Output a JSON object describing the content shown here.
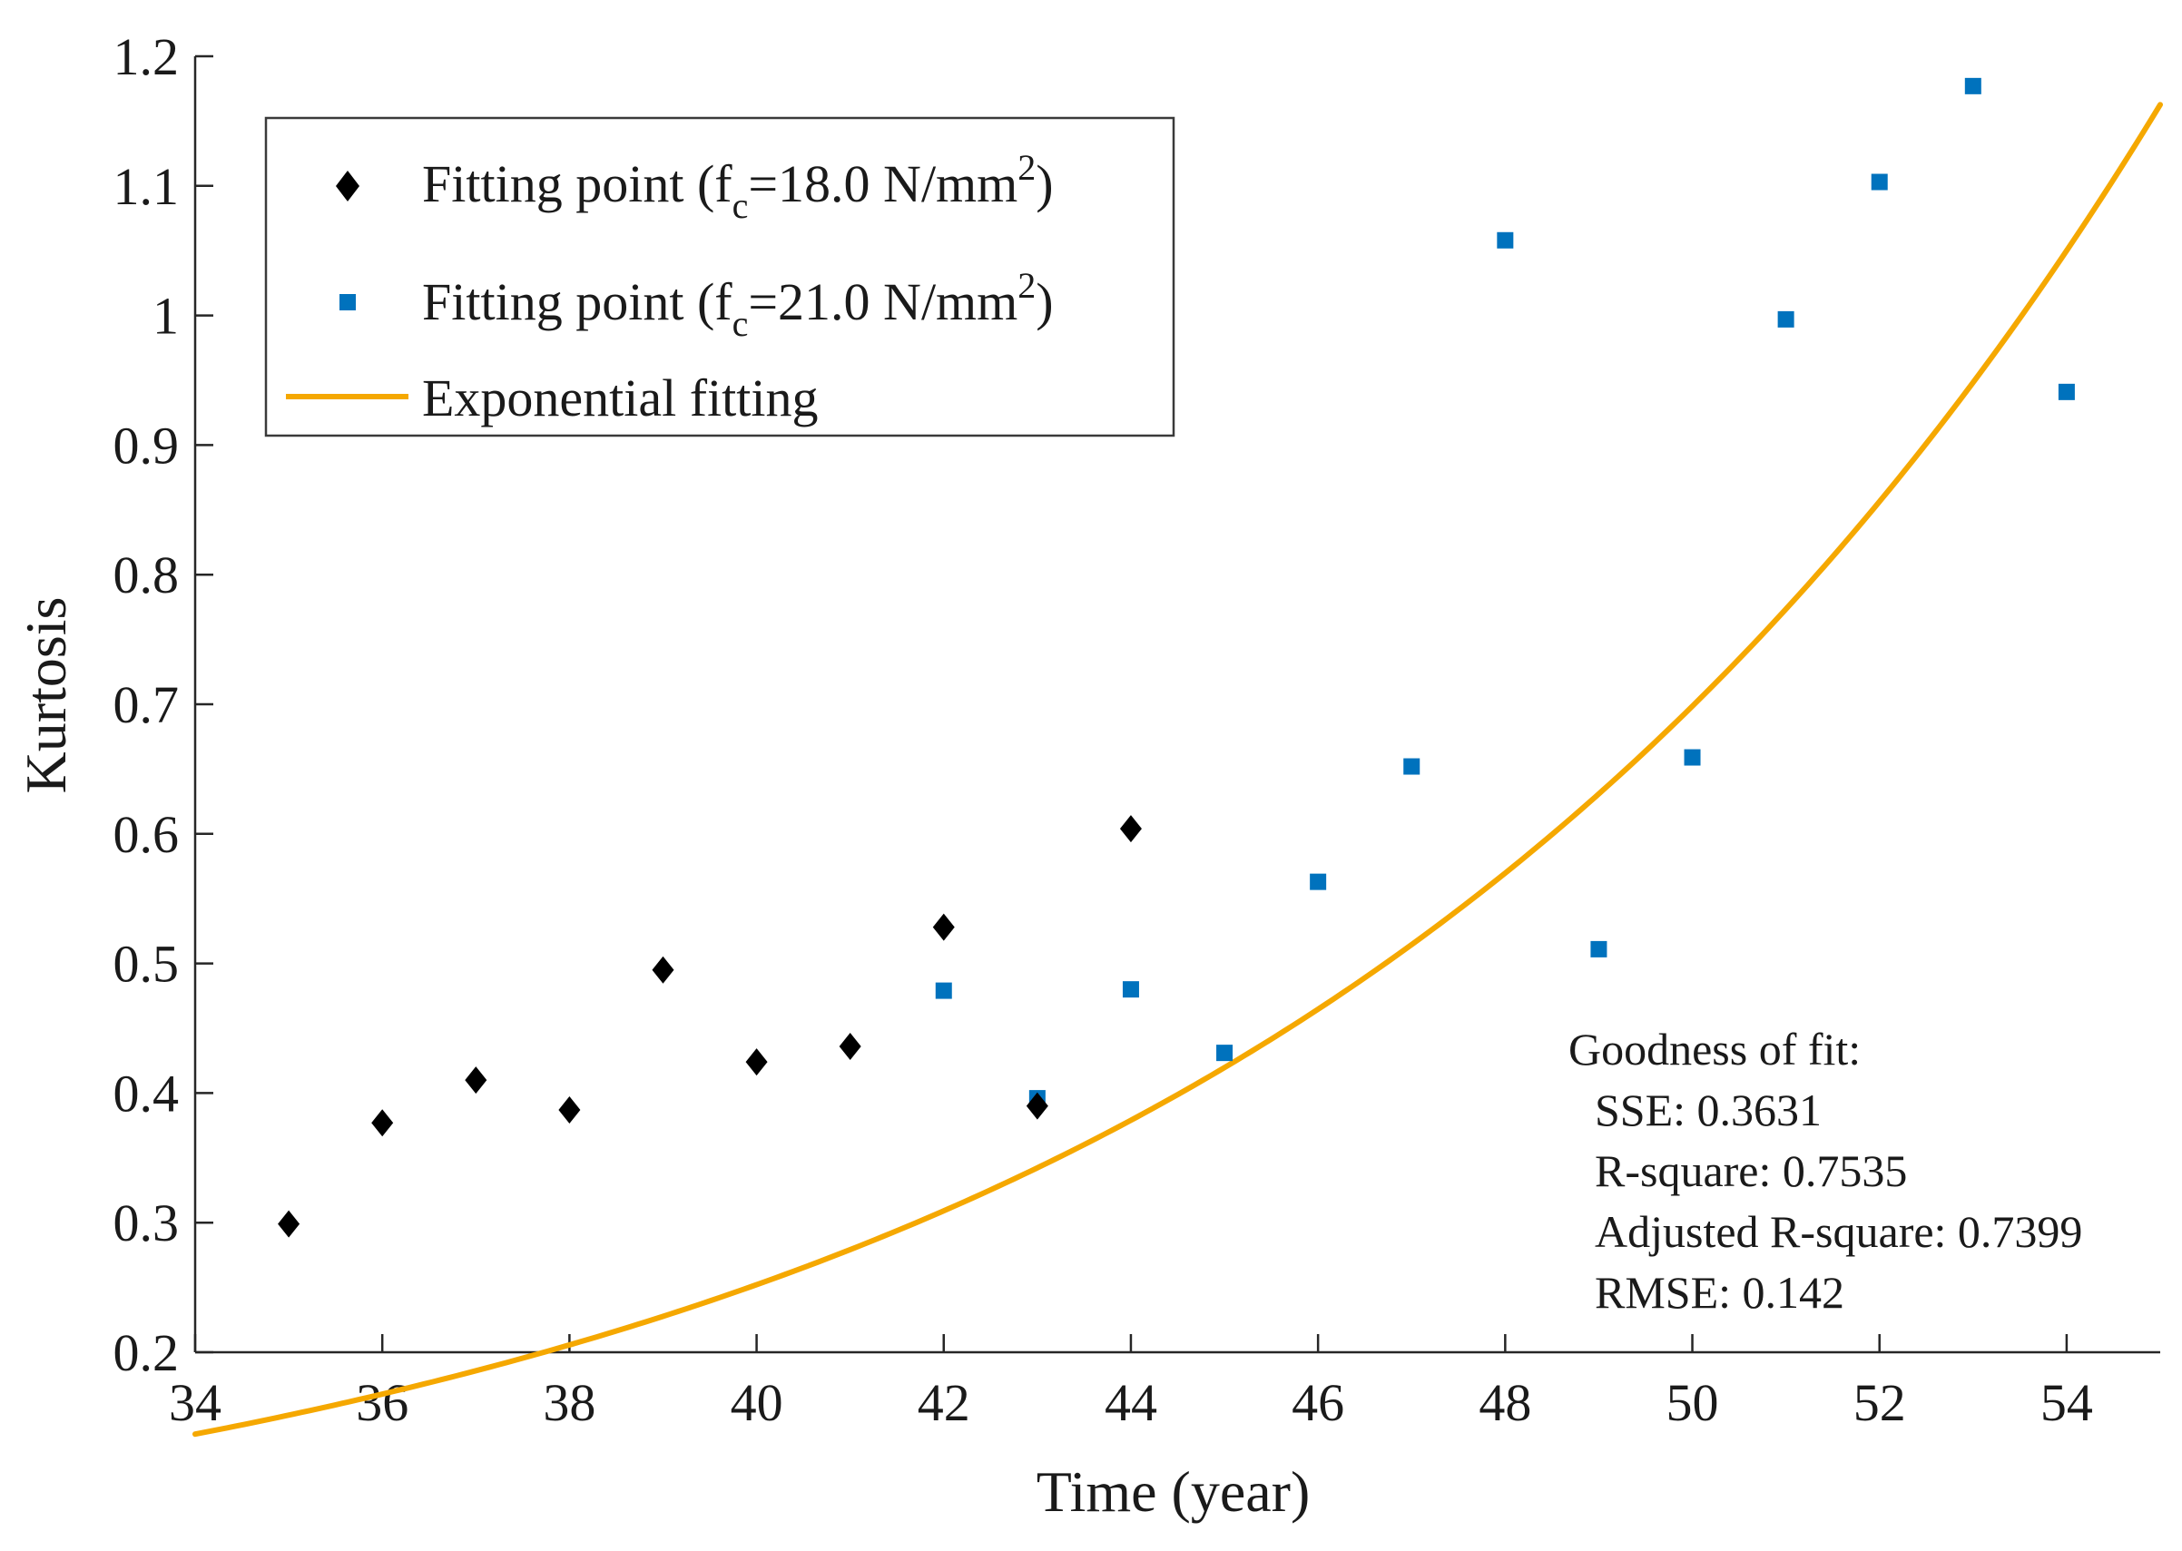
{
  "chart_data": {
    "type": "scatter",
    "title": "",
    "xlabel": "Time (year)",
    "ylabel": "Kurtosis",
    "xlim": [
      34,
      55
    ],
    "ylim": [
      0.2,
      1.2
    ],
    "x_ticks": [
      "34",
      "36",
      "38",
      "40",
      "42",
      "44",
      "46",
      "48",
      "50",
      "52",
      "54"
    ],
    "y_ticks": [
      "0.2",
      "0.3",
      "0.4",
      "0.5",
      "0.6",
      "0.7",
      "0.8",
      "0.9",
      "1",
      "1.1",
      "1.2"
    ],
    "series": [
      {
        "name": "Fitting point (fc=18.0 N/mm2)",
        "label_prefix": "Fitting point (f",
        "label_sub": "c",
        "label_mid": "=18.0 N/mm",
        "label_sup": "2",
        "label_suffix": ")",
        "marker": "diamond",
        "color": "#000000",
        "x": [
          35,
          36,
          37,
          38,
          39,
          40,
          41,
          42,
          43,
          44
        ],
        "y": [
          0.299,
          0.377,
          0.41,
          0.387,
          0.495,
          0.424,
          0.436,
          0.528,
          0.39,
          0.604
        ]
      },
      {
        "name": "Fitting point (fc=21.0 N/mm2)",
        "label_prefix": "Fitting point (f",
        "label_sub": "c",
        "label_mid": "=21.0 N/mm",
        "label_sup": "2",
        "label_suffix": ")",
        "marker": "square",
        "color": "#0072BD",
        "x": [
          42,
          43,
          44,
          45,
          46,
          47,
          48,
          49,
          50,
          51,
          52,
          53,
          54
        ],
        "y": [
          0.479,
          0.396,
          0.48,
          0.431,
          0.563,
          0.652,
          1.058,
          0.511,
          0.659,
          0.997,
          1.103,
          1.177,
          0.941
        ]
      },
      {
        "name": "Exponential fitting",
        "type": "line",
        "color": "#F5A800",
        "model": "y = a*exp(b*x)",
        "a": 0.00428,
        "b": 0.1019,
        "x_range": [
          34,
          55
        ]
      }
    ],
    "legend_location": "top-left",
    "annotation": {
      "title": "Goodness of fit:",
      "lines": [
        "SSE: 0.3631",
        "R-square: 0.7535",
        "Adjusted R-square: 0.7399",
        "RMSE: 0.142"
      ]
    }
  }
}
